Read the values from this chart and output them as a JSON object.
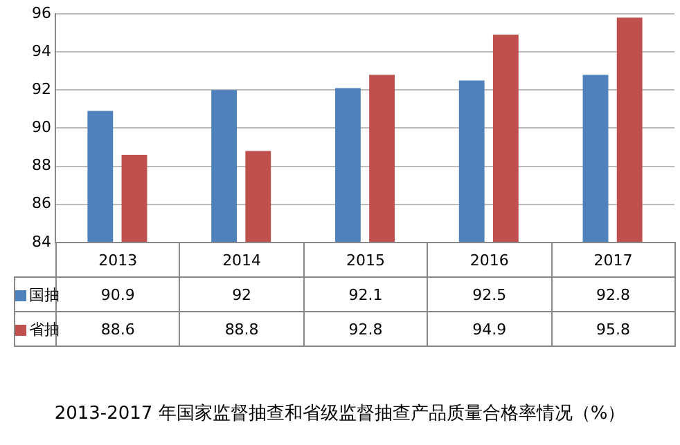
{
  "chart_data": {
    "type": "bar",
    "title": "2013-2017 年国家监督抽查和省级监督抽查产品质量合格率情况（%）",
    "categories": [
      "2013",
      "2014",
      "2015",
      "2016",
      "2017"
    ],
    "series": [
      {
        "name": "国抽",
        "color": "#4f81bd",
        "values": [
          90.9,
          92,
          92.1,
          92.5,
          92.8
        ]
      },
      {
        "name": "省抽",
        "color": "#c0504d",
        "values": [
          88.6,
          88.8,
          92.8,
          94.9,
          95.8
        ]
      }
    ],
    "ylim": [
      84,
      96
    ],
    "yticks": [
      84,
      86,
      88,
      90,
      92,
      94,
      96
    ],
    "grid": "y",
    "legend": "bottom",
    "data_labels": true
  }
}
